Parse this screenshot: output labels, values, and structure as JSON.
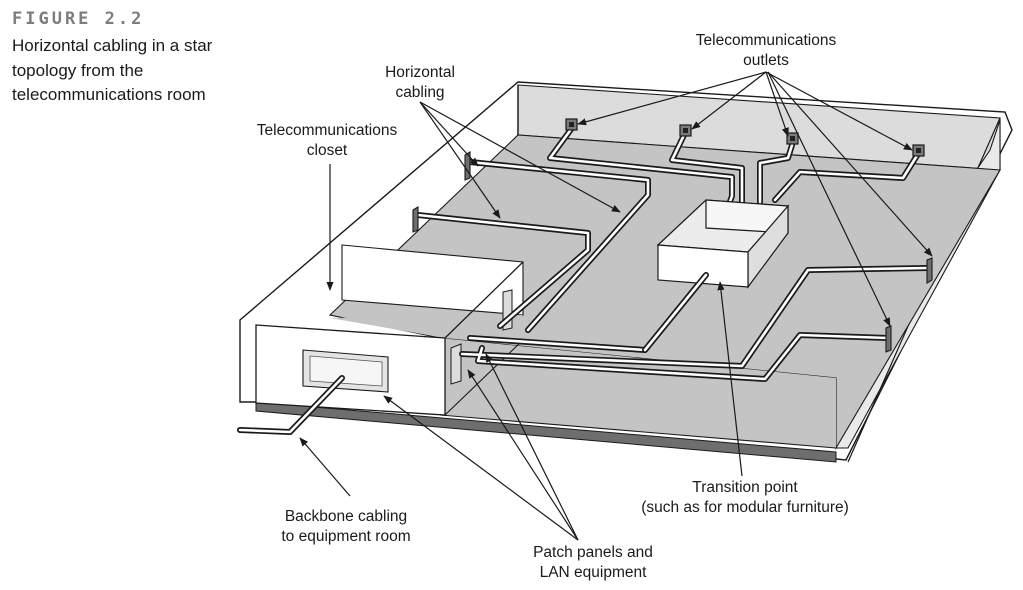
{
  "figure": {
    "number": "FIGURE 2.2",
    "caption": "Horizontal cabling in a star topology from the telecommunications room"
  },
  "labels": {
    "telecom_outlets": [
      "Telecommunications",
      "outlets"
    ],
    "horizontal_cabling": [
      "Horizontal",
      "cabling"
    ],
    "telecom_closet": [
      "Telecommunications",
      "closet"
    ],
    "transition_point": [
      "Transition point",
      "(such as for modular furniture)"
    ],
    "backbone_cabling": [
      "Backbone cabling",
      "to equipment room"
    ],
    "patch_panels": [
      "Patch panels and",
      "LAN equipment"
    ]
  },
  "colors": {
    "floor": "#c4c4c4",
    "wall": "#dcdcdc",
    "wall_light": "#e9e9e9",
    "edge_band": "#6e6e6e",
    "outline": "#1a1a1a",
    "caption_number": "#7d7d7d"
  }
}
